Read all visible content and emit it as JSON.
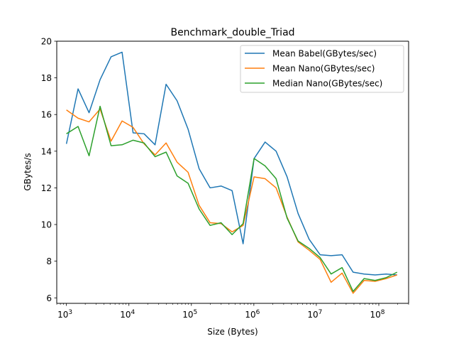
{
  "chart_data": {
    "type": "line",
    "title": "Benchmark_double_Triad",
    "xlabel": "Size (Bytes)",
    "ylabel": "GBytes/s",
    "xscale": "log",
    "xlim": [
      700,
      300000000
    ],
    "ylim": [
      5.7,
      20
    ],
    "yticks": [
      6,
      8,
      10,
      12,
      14,
      16,
      18,
      20
    ],
    "ytick_labels": [
      "6",
      "8",
      "10",
      "12",
      "14",
      "16",
      "18",
      "20"
    ],
    "xticks": [
      1000,
      10000,
      100000,
      1000000,
      10000000,
      100000000
    ],
    "xtick_labels": [
      {
        "base": "10",
        "exp": "3"
      },
      {
        "base": "10",
        "exp": "4"
      },
      {
        "base": "10",
        "exp": "5"
      },
      {
        "base": "10",
        "exp": "6"
      },
      {
        "base": "10",
        "exp": "7"
      },
      {
        "base": "10",
        "exp": "8"
      }
    ],
    "grid": false,
    "legend_position": "top-right",
    "x": [
      1000,
      1536,
      2304,
      3456,
      5184,
      7776,
      11664,
      17496,
      26244,
      39366,
      59049,
      88573,
      132860,
      199290,
      298935,
      448403,
      672604,
      1008906,
      1513359,
      2270038,
      3405057,
      5107586,
      7661379,
      11492068,
      17238103,
      25857154,
      38785731,
      58178596,
      87267894,
      130901841,
      196352761
    ],
    "series": [
      {
        "name": "Mean Babel(GBytes/sec)",
        "color": "#1f77b4",
        "values": [
          14.4,
          17.4,
          16.1,
          17.9,
          19.15,
          19.4,
          15.0,
          14.95,
          14.35,
          17.65,
          16.75,
          15.2,
          13.05,
          12.0,
          12.1,
          11.85,
          8.95,
          13.6,
          14.5,
          14.0,
          12.6,
          10.6,
          9.2,
          8.35,
          8.3,
          8.35,
          7.4,
          7.3,
          7.25,
          7.3,
          7.25
        ]
      },
      {
        "name": "Mean Nano(GBytes/sec)",
        "color": "#ff7f0e",
        "values": [
          16.25,
          15.8,
          15.6,
          16.3,
          14.55,
          15.65,
          15.3,
          14.4,
          13.8,
          14.45,
          13.4,
          12.85,
          11.05,
          10.1,
          10.05,
          9.6,
          9.95,
          12.6,
          12.5,
          12.0,
          10.4,
          9.05,
          8.6,
          8.1,
          6.85,
          7.35,
          6.25,
          6.95,
          6.9,
          7.05,
          7.25
        ]
      },
      {
        "name": "Median Nano(GBytes/sec)",
        "color": "#2ca02c",
        "values": [
          14.95,
          15.35,
          13.75,
          16.45,
          14.3,
          14.35,
          14.6,
          14.45,
          13.7,
          13.95,
          12.65,
          12.25,
          10.85,
          9.95,
          10.1,
          9.45,
          10.05,
          13.6,
          13.2,
          12.5,
          10.35,
          9.1,
          8.7,
          8.2,
          7.3,
          7.65,
          6.35,
          7.05,
          6.95,
          7.1,
          7.4
        ]
      }
    ]
  }
}
